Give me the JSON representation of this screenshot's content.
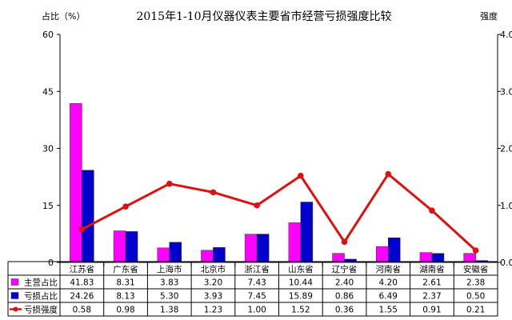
{
  "chart_data": {
    "type": "bar",
    "title": "2015年1-10月仪器仪表主要省市经营亏损强度比较",
    "ylabel": "占比（%）",
    "y2label": "强度",
    "ylim": [
      0,
      60
    ],
    "yticks": [
      "0",
      "15",
      "30",
      "45",
      "60"
    ],
    "y2lim": [
      0,
      4
    ],
    "y2ticks": [
      "0.00",
      "1.00",
      "2.00",
      "3.00",
      "4.00"
    ],
    "grid": false,
    "categories": [
      "江苏省",
      "广东省",
      "上海市",
      "北京市",
      "浙江省",
      "山东省",
      "辽宁省",
      "河南省",
      "湖南省",
      "安徽省"
    ],
    "series": [
      {
        "name": "主营占比",
        "kind": "bar",
        "axis": "left",
        "color": "#ff00ff",
        "values": [
          41.83,
          8.31,
          3.83,
          3.2,
          7.43,
          10.44,
          2.4,
          4.2,
          2.61,
          2.38
        ],
        "labels": [
          "41.83",
          "8.31",
          "3.83",
          "3.20",
          "7.43",
          "10.44",
          "2.40",
          "4.20",
          "2.61",
          "2.38"
        ]
      },
      {
        "name": "亏损占比",
        "kind": "bar",
        "axis": "left",
        "color": "#0000cc",
        "values": [
          24.26,
          8.13,
          5.3,
          3.93,
          7.45,
          15.89,
          0.86,
          6.49,
          2.37,
          0.5
        ],
        "labels": [
          "24.26",
          "8.13",
          "5.30",
          "3.93",
          "7.45",
          "15.89",
          "0.86",
          "6.49",
          "2.37",
          "0.50"
        ]
      },
      {
        "name": "亏损强度",
        "kind": "line",
        "axis": "right",
        "color": "#dd1111",
        "values": [
          0.58,
          0.98,
          1.38,
          1.23,
          1.0,
          1.52,
          0.36,
          1.55,
          0.91,
          0.21
        ],
        "labels": [
          "0.58",
          "0.98",
          "1.38",
          "1.23",
          "1.00",
          "1.52",
          "0.36",
          "1.55",
          "0.91",
          "0.21"
        ]
      }
    ]
  }
}
